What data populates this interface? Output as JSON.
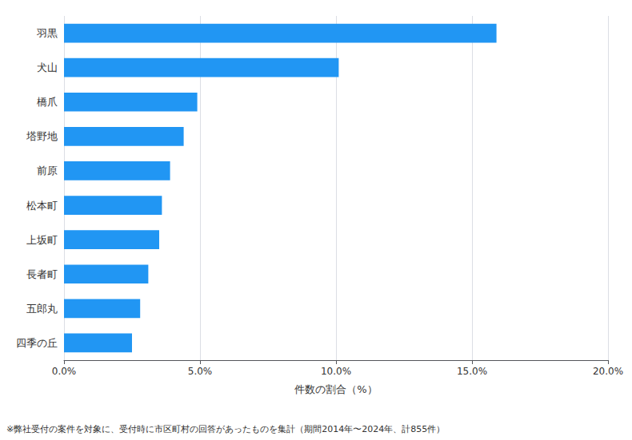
{
  "chart_data": {
    "type": "bar",
    "orientation": "horizontal",
    "categories": [
      "羽黒",
      "犬山",
      "橋爪",
      "塔野地",
      "前原",
      "松本町",
      "上坂町",
      "長者町",
      "五郎丸",
      "四季の丘"
    ],
    "values": [
      15.9,
      10.1,
      4.9,
      4.4,
      3.9,
      3.6,
      3.5,
      3.1,
      2.8,
      2.5
    ],
    "color": "#2196F3",
    "xlabel": "件数の割合（%）",
    "xlim": [
      0,
      20
    ],
    "xticks": [
      {
        "value": 0,
        "label": "0.0%"
      },
      {
        "value": 5,
        "label": "5.0%"
      },
      {
        "value": 10,
        "label": "10.0%"
      },
      {
        "value": 15,
        "label": "15.0%"
      },
      {
        "value": 20,
        "label": "20.0%"
      }
    ],
    "grid": true,
    "annotations": [
      "※弊社受付の案件を対象に、受付時に市区町村の回答があったものを集計（期間2014年〜2024年、計855件）"
    ]
  }
}
